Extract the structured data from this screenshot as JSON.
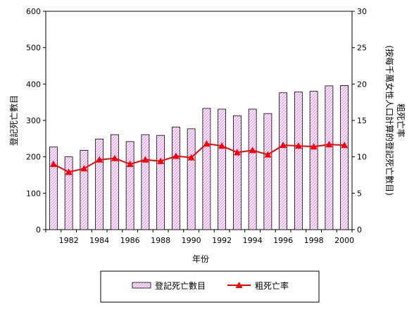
{
  "chart_data": {
    "type": "bar+line",
    "x": [
      1981,
      1982,
      1983,
      1984,
      1985,
      1986,
      1987,
      1988,
      1989,
      1990,
      1991,
      1992,
      1993,
      1994,
      1995,
      1996,
      1997,
      1998,
      1999,
      2000
    ],
    "x_tick_labels": [
      "1982",
      "1984",
      "1986",
      "1988",
      "1990",
      "1992",
      "1994",
      "1996",
      "1998",
      "2000"
    ],
    "series": [
      {
        "name": "登記死亡數目",
        "type": "bar",
        "axis": "left",
        "color": "#ffccff",
        "values": [
          227,
          200,
          218,
          249,
          261,
          242,
          261,
          259,
          282,
          277,
          333,
          331,
          313,
          331,
          319,
          376,
          378,
          380,
          395,
          396
        ]
      },
      {
        "name": "粗死亡率",
        "type": "line",
        "axis": "right",
        "color": "#ff0000",
        "values": [
          9.0,
          7.9,
          8.4,
          9.6,
          9.8,
          9.0,
          9.6,
          9.4,
          10.1,
          9.9,
          11.8,
          11.5,
          10.6,
          10.9,
          10.3,
          11.6,
          11.5,
          11.4,
          11.7,
          11.6
        ]
      }
    ],
    "xlabel": "年份",
    "ylabel_left": "登記死亡數目",
    "ylabel_right_line1": "粗死亡率",
    "ylabel_right_line2": "(按每千萬女性人口計算的登記死亡數目)",
    "ylim_left": [
      0,
      600
    ],
    "yticks_left": [
      0,
      100,
      200,
      300,
      400,
      500,
      600
    ],
    "ylim_right": [
      0,
      30
    ],
    "yticks_right": [
      0,
      5,
      10,
      15,
      20,
      25,
      30
    ],
    "grid": false,
    "legend_position": "bottom"
  }
}
